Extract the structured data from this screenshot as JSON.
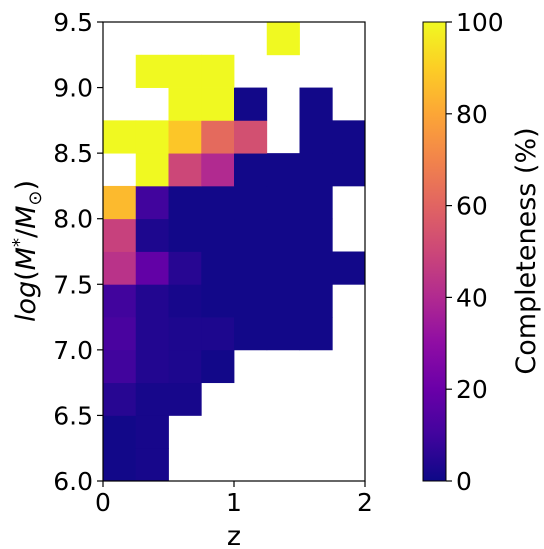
{
  "chart_data": {
    "type": "heatmap",
    "title": "",
    "xlabel": "z",
    "ylabel": "log(M*/M⊙)",
    "xlim": [
      0,
      2
    ],
    "ylim": [
      6.0,
      9.5
    ],
    "x_bin_edges": [
      0,
      0.25,
      0.5,
      0.75,
      1.0,
      1.25,
      1.5,
      1.75,
      2.0
    ],
    "y_bin_edges": [
      6.0,
      6.25,
      6.5,
      6.75,
      7.0,
      7.25,
      7.5,
      7.75,
      8.0,
      8.25,
      8.5,
      8.75,
      9.0,
      9.25,
      9.5
    ],
    "x_ticks": [
      "0",
      "1",
      "2"
    ],
    "y_ticks": [
      "6.0",
      "6.5",
      "7.0",
      "7.5",
      "8.0",
      "8.5",
      "9.0",
      "9.5"
    ],
    "colormap": "plasma",
    "colorbar": {
      "label": "Completeness (%)",
      "range": [
        0,
        100
      ],
      "ticks": [
        "0",
        "20",
        "40",
        "60",
        "80",
        "100"
      ]
    },
    "values_note_rows": "rows from bottom (6.0-6.25) to top (9.25-9.5); columns z bins 0-0.25 ... 1.75-2.0; null = no data",
    "values": [
      [
        1,
        2,
        null,
        null,
        null,
        null,
        null,
        null
      ],
      [
        1,
        2,
        null,
        null,
        null,
        null,
        null,
        null
      ],
      [
        5,
        2,
        2,
        null,
        null,
        null,
        null,
        null
      ],
      [
        10,
        4,
        3,
        1,
        null,
        null,
        null,
        null
      ],
      [
        12,
        4,
        3,
        3,
        1,
        1,
        1,
        null
      ],
      [
        10,
        4,
        2,
        1,
        1,
        1,
        1,
        null
      ],
      [
        43,
        18,
        5,
        1,
        1,
        1,
        1,
        1
      ],
      [
        48,
        3,
        1,
        1,
        1,
        1,
        1,
        null
      ],
      [
        85,
        10,
        1,
        1,
        1,
        1,
        1,
        null
      ],
      [
        null,
        100,
        50,
        40,
        1,
        1,
        1,
        1
      ],
      [
        100,
        100,
        88,
        62,
        53,
        null,
        1,
        1
      ],
      [
        null,
        null,
        100,
        100,
        1,
        null,
        1,
        null
      ],
      [
        null,
        100,
        100,
        100,
        null,
        null,
        null,
        null
      ],
      [
        null,
        null,
        null,
        null,
        null,
        100,
        null,
        null
      ]
    ]
  }
}
